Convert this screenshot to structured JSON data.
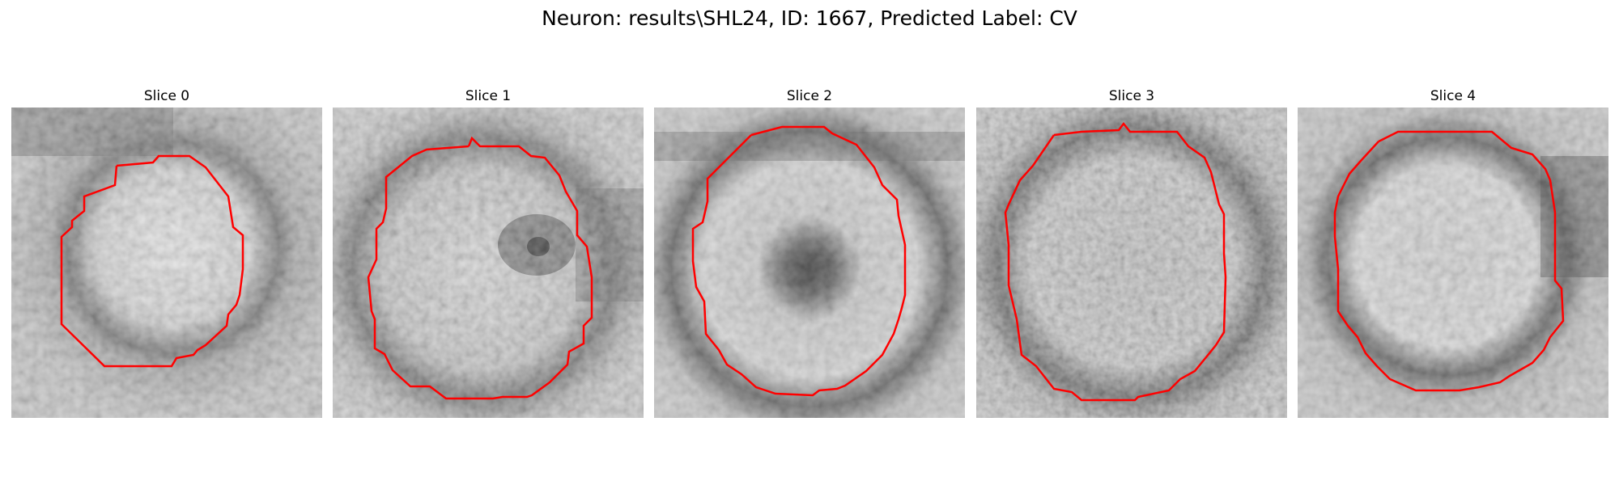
{
  "figure": {
    "title": "Neuron: results\\SHL24, ID: 1667, Predicted Label: CV"
  },
  "slices": [
    {
      "title": "Slice 0"
    },
    {
      "title": "Slice 1"
    },
    {
      "title": "Slice 2"
    },
    {
      "title": "Slice 3"
    },
    {
      "title": "Slice 4"
    }
  ],
  "colors": {
    "contour": "#ff0000",
    "background": "#ffffff",
    "image_colormap": "grayscale"
  }
}
